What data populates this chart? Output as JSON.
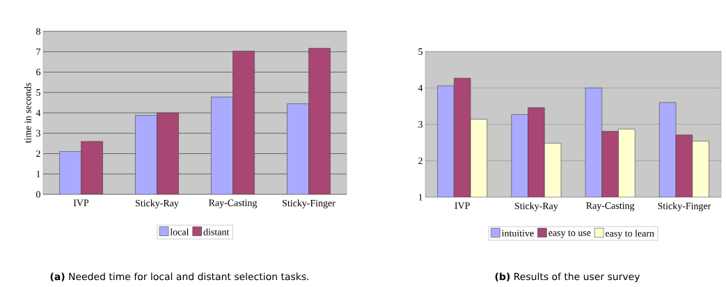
{
  "chart_data": [
    {
      "type": "bar",
      "categories": [
        "IVP",
        "Sticky-Ray",
        "Ray-Casting",
        "Sticky-Finger"
      ],
      "ylabel": "time in seconds",
      "series": [
        {
          "name": "local",
          "color": "#aaaaff",
          "values": [
            2.1,
            3.88,
            4.78,
            4.45
          ]
        },
        {
          "name": "distant",
          "color": "#a94673",
          "values": [
            2.6,
            4.0,
            7.03,
            7.17
          ]
        }
      ],
      "ylim": [
        0,
        8
      ],
      "yticks": [
        0,
        1,
        2,
        3,
        4,
        5,
        6,
        7,
        8
      ],
      "grid": "y",
      "legend": "bottom",
      "annotations": [
        "**(a)** Needed time for local and distant selection tasks."
      ]
    },
    {
      "type": "bar",
      "categories": [
        "IVP",
        "Sticky-Ray",
        "Ray-Casting",
        "Sticky-Finger"
      ],
      "series": [
        {
          "name": "intuitive",
          "color": "#aaaaff",
          "values": [
            4.06,
            3.27,
            4.0,
            3.6
          ]
        },
        {
          "name": "easy to use",
          "color": "#a94673",
          "values": [
            4.27,
            3.46,
            2.81,
            2.71
          ]
        },
        {
          "name": "easy to learn",
          "color": "#ffffd0",
          "values": [
            3.14,
            2.48,
            2.87,
            2.54
          ]
        }
      ],
      "ylim": [
        1,
        5
      ],
      "yticks": [
        1,
        2,
        3,
        4,
        5
      ],
      "grid": "y",
      "legend": "bottom",
      "annotations": [
        "**(b)** Results of the user survey"
      ]
    }
  ]
}
